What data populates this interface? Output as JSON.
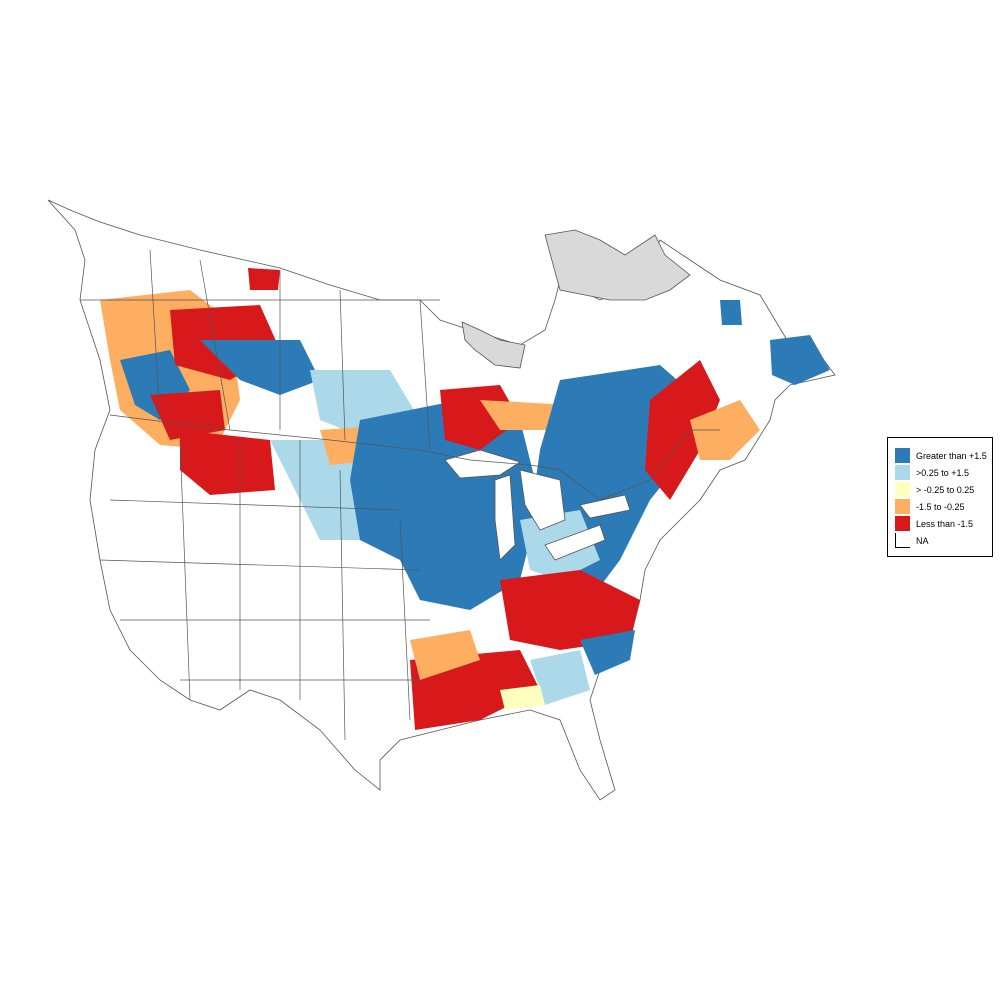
{
  "legend": {
    "items": [
      {
        "label": "Greater than +1.5",
        "color": "#2c7bb6"
      },
      {
        "label": ">0.25 to +1.5",
        "color": "#abd9e9"
      },
      {
        "label": "> -0.25 to 0.25",
        "color": "#ffffbf"
      },
      {
        "label": "-1.5 to -0.25",
        "color": "#fdae61"
      },
      {
        "label": "Less than -1.5",
        "color": "#d7191c"
      },
      {
        "label": "NA",
        "color": "#ffffff"
      }
    ]
  },
  "map": {
    "boundary_color": "#555555",
    "no_data_region_color": "#d9d9d9"
  }
}
